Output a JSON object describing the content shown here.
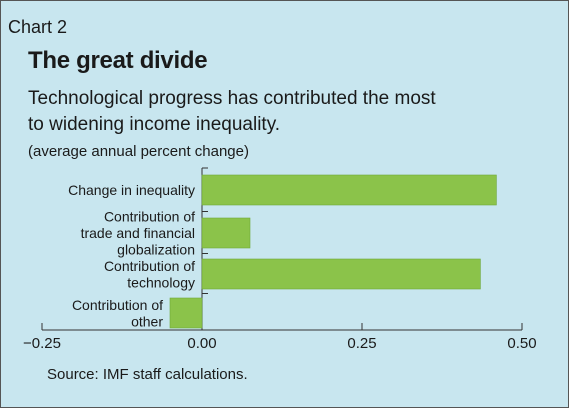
{
  "header": {
    "chart_label": "Chart 2",
    "title": "The great divide",
    "subtitle_lines": [
      "Technological progress has contributed the most",
      "to widening income inequality."
    ],
    "unit_note": "(average annual percent change)"
  },
  "footer": {
    "source": "Source: IMF staff calculations."
  },
  "colors": {
    "background": "#c8e6ef",
    "bar": "#8bc34a",
    "bar_outline": "#6fa83a",
    "axis": "#333333"
  },
  "chart_data": {
    "type": "bar",
    "orientation": "horizontal",
    "categories": [
      [
        "Change in inequality"
      ],
      [
        "Contribution of",
        "trade and financial",
        "globalization"
      ],
      [
        "Contribution of",
        "technology"
      ],
      [
        "Contribution of",
        "other"
      ]
    ],
    "values": [
      0.46,
      0.075,
      0.435,
      -0.05
    ],
    "xlim": [
      -0.25,
      0.5
    ],
    "xticks": [
      -0.25,
      0,
      0.25,
      0.5
    ],
    "xtick_labels": [
      "−0.25",
      "0.00",
      "0.25",
      "0.50"
    ],
    "grid": false,
    "legend": "none"
  }
}
